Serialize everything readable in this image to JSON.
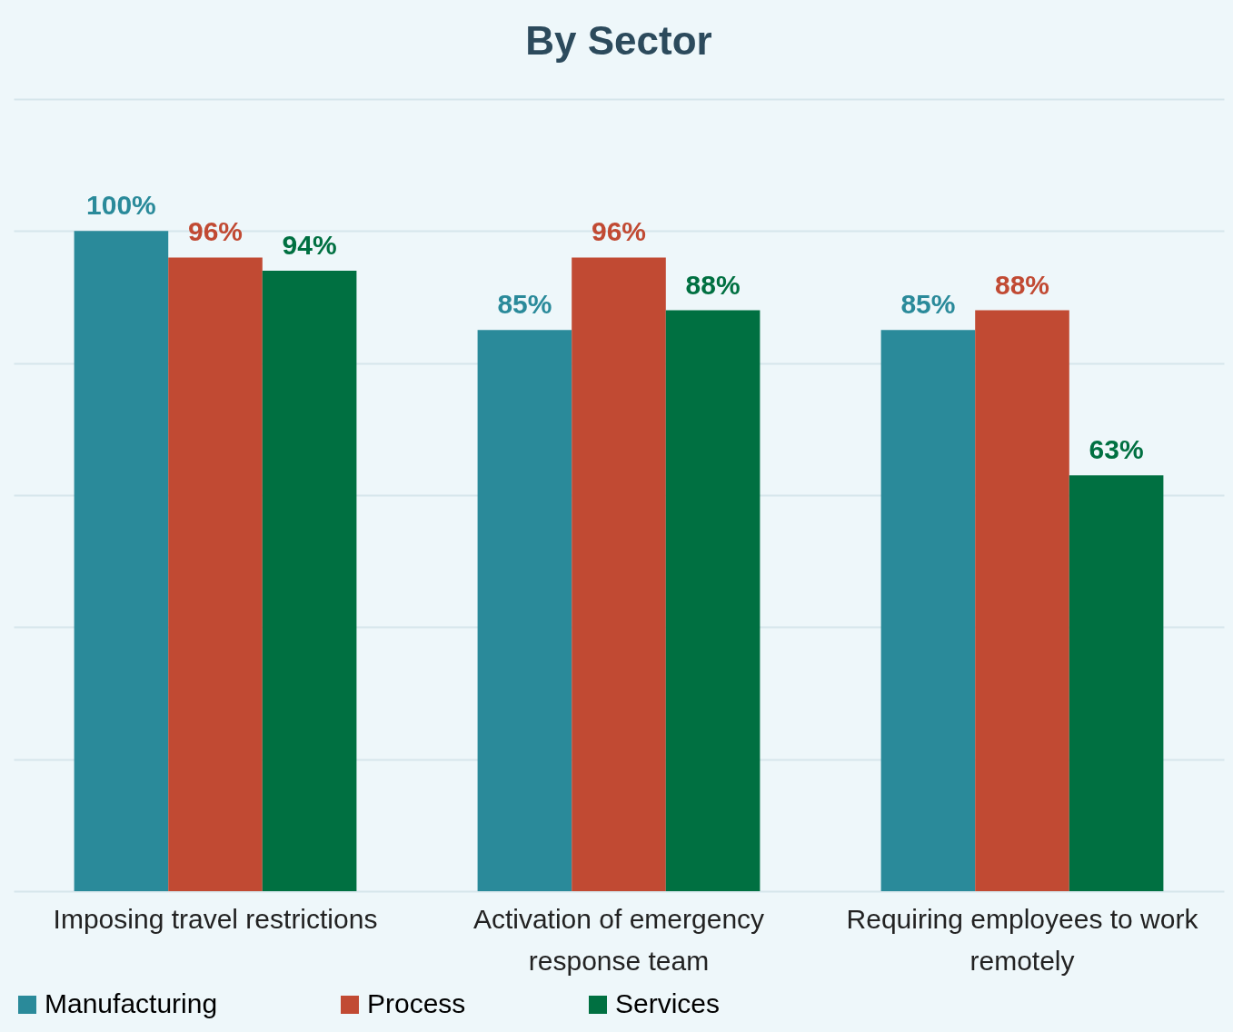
{
  "chart_data": {
    "type": "bar",
    "title": "By Sector",
    "categories": [
      "Imposing travel restrictions",
      "Activation of emergency response team",
      "Requiring employees to work remotely"
    ],
    "series": [
      {
        "name": "Manufacturing",
        "color": "#2a8a9a",
        "values": [
          100,
          85,
          85
        ],
        "value_labels": [
          "100%",
          "85%",
          "85%"
        ]
      },
      {
        "name": "Process",
        "color": "#c14a33",
        "values": [
          96,
          96,
          88
        ],
        "value_labels": [
          "96%",
          "96%",
          "88%"
        ]
      },
      {
        "name": "Services",
        "color": "#007041",
        "values": [
          94,
          88,
          63
        ],
        "value_labels": [
          "94%",
          "88%",
          "63%"
        ]
      }
    ],
    "ylim": [
      0,
      120
    ],
    "yticks": [
      {
        "value": 0,
        "label": null
      },
      {
        "value": 20,
        "label": null
      },
      {
        "value": 40,
        "label": null
      },
      {
        "value": 60,
        "label": null
      },
      {
        "value": 80,
        "label": null
      },
      {
        "value": 100,
        "label": null
      },
      {
        "value": 120,
        "label": null
      }
    ],
    "tick_labels": "x",
    "grid": "y",
    "legend": "bottom"
  }
}
